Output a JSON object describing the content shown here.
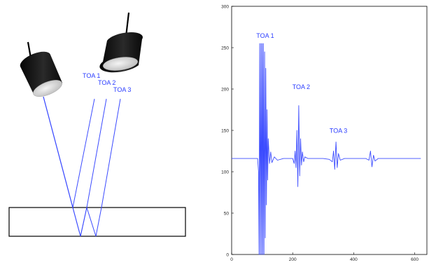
{
  "diagram": {
    "toa_labels": [
      "TOA 1",
      "TOA 2",
      "TOA 3"
    ],
    "colors": {
      "ray": "#3b4bff",
      "label": "#2a3cff",
      "block": "#000000"
    },
    "icons": [
      "transducer-icon",
      "transducer-icon"
    ]
  },
  "chart_data": {
    "type": "line",
    "annotations": [
      "TOA 1",
      "TOA 2",
      "TOA 3"
    ],
    "ylim": [
      0,
      300
    ],
    "xlim": [
      0,
      640
    ],
    "yticks": [
      "0",
      "50",
      "100",
      "150",
      "200",
      "250",
      "300"
    ],
    "xticks": [
      "0",
      "200",
      "400",
      "600"
    ],
    "series": [
      {
        "color": "#3b4bff",
        "x": [
          0,
          75,
          80,
          85,
          88,
          90,
          92,
          94,
          96,
          98,
          100,
          102,
          104,
          106,
          108,
          110,
          112,
          114,
          116,
          118,
          120,
          124,
          128,
          132,
          140,
          150,
          170,
          200,
          205,
          208,
          211,
          214,
          217,
          220,
          223,
          226,
          229,
          232,
          236,
          240,
          250,
          270,
          300,
          320,
          330,
          334,
          338,
          342,
          346,
          350,
          356,
          370,
          400,
          420,
          440,
          450,
          455,
          460,
          465,
          470,
          480,
          500,
          520,
          540,
          560,
          580,
          600,
          620
        ],
        "values": [
          116,
          116,
          116,
          116,
          100,
          0,
          255,
          0,
          255,
          0,
          255,
          0,
          255,
          0,
          245,
          20,
          225,
          60,
          175,
          90,
          140,
          110,
          124,
          111,
          118,
          114,
          116,
          116,
          110,
          125,
          105,
          150,
          82,
          180,
          95,
          140,
          108,
          124,
          112,
          118,
          116,
          116,
          116,
          115,
          112,
          125,
          103,
          136,
          105,
          122,
          114,
          116,
          116,
          116,
          116,
          114,
          125,
          106,
          120,
          113,
          116,
          116,
          116,
          116,
          116,
          116,
          116,
          116
        ]
      }
    ]
  }
}
